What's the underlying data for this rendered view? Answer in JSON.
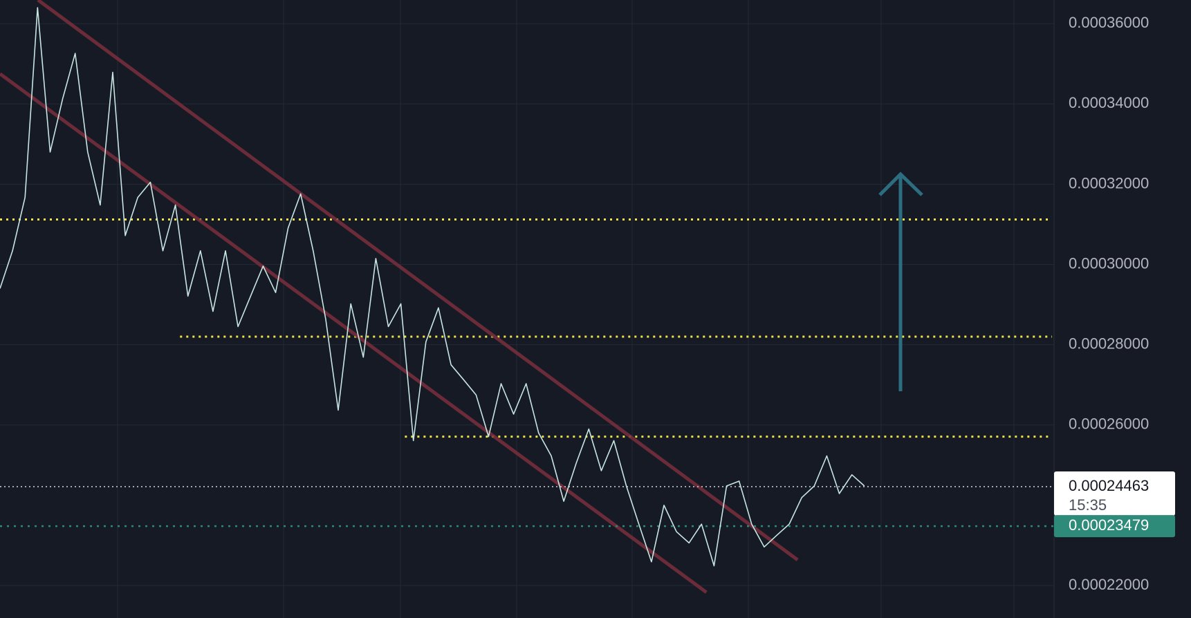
{
  "chart_data": {
    "type": "line",
    "series": [
      {
        "color": "#c8e6e3",
        "values": [
          0.000294,
          0.0003034,
          0.0003167,
          0.000364,
          0.000328,
          0.0003413,
          0.0003526,
          0.000328,
          0.0003148,
          0.0003479,
          0.0003072,
          0.0003167,
          0.0003205,
          0.0003034,
          0.0003148,
          0.0002921,
          0.0003034,
          0.0002883,
          0.0003034,
          0.0002845,
          0.0002921,
          0.0002996,
          0.000293,
          0.0003091,
          0.0003176,
          0.0003034,
          0.0002864,
          0.0002637,
          0.0002902,
          0.0002769,
          0.0003015,
          0.0002845,
          0.0002902,
          0.0002561,
          0.0002807,
          0.0002892,
          0.000275,
          0.0002713,
          0.0002675,
          0.0002571,
          0.0002703,
          0.0002627,
          0.0002703,
          0.000258,
          0.0002523,
          0.000241,
          0.0002505,
          0.000259,
          0.0002486,
          0.0002561,
          0.0002448,
          0.0002353,
          0.0002259,
          0.00024,
          0.0002334,
          0.0002306,
          0.0002353,
          0.0002249,
          0.0002448,
          0.000246,
          0.0002353,
          0.0002296,
          0.0002325,
          0.0002353,
          0.0002419,
          0.0002448,
          0.0002523,
          0.0002429,
          0.0002476,
          0.0002448
        ]
      }
    ],
    "ylim": [
      0.0002119,
      0.0003659
    ],
    "yticks": [
      {
        "value": 0.00036,
        "label": "0.00036000"
      },
      {
        "value": 0.00034,
        "label": "0.00034000"
      },
      {
        "value": 0.00032,
        "label": "0.00032000"
      },
      {
        "value": 0.0003,
        "label": "0.00030000"
      },
      {
        "value": 0.00028,
        "label": "0.00028000"
      },
      {
        "value": 0.00026,
        "label": "0.00026000"
      },
      {
        "value": 0.00022,
        "label": "0.00022000"
      }
    ],
    "grid": true,
    "levels": {
      "color": "#f0e442",
      "values": [
        0.0003112,
        0.000282,
        0.0002571
      ]
    },
    "trendlines": {
      "color": "#7a2f3c",
      "lines": [
        {
          "start": 0.0003659,
          "end": 0.0002264
        },
        {
          "start": 0.0003475,
          "end": 0.0002183
        }
      ]
    },
    "last_price": {
      "value": 0.00024463,
      "label": "0.00024463",
      "time": "15:35"
    },
    "marker_price": {
      "value": 0.00023479,
      "label": "0.00023479",
      "color": "#2e8b7a"
    }
  }
}
